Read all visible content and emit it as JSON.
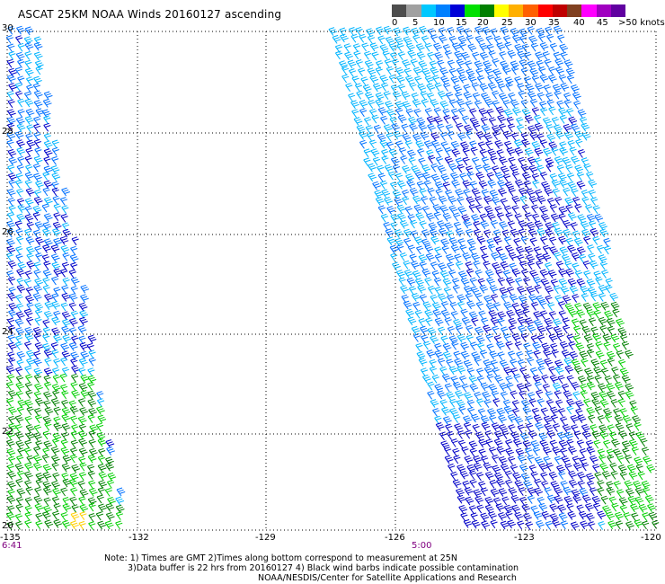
{
  "title": "ASCAT 25KM NOAA Winds 20160127 ascending",
  "legend": {
    "labels": [
      "0",
      "5",
      "10",
      "15",
      "20",
      "25",
      "30",
      "35",
      "40",
      "45",
      ">50 knots"
    ],
    "colors": [
      "#4d4d4d",
      "#a0a0a0",
      "#00c8ff",
      "#0080ff",
      "#0000d8",
      "#00e000",
      "#008000",
      "#ffff00",
      "#ffb000",
      "#ff6000",
      "#ff0000",
      "#c00000",
      "#804020",
      "#ff00ff",
      "#a000c0",
      "#6000a0"
    ]
  },
  "lat_labels": [
    "30",
    "28",
    "26",
    "24",
    "22",
    "20"
  ],
  "lon_labels": [
    "-135",
    "-132",
    "-129",
    "-126",
    "-123",
    "-120"
  ],
  "time_labels": [
    "6:41",
    "5:00"
  ],
  "notes": [
    "Note: 1) Times are GMT 2)Times along bottom correspond to measurement at 25N",
    "3)Data buffer is 22 hrs from 20160127 4) Black wind barbs indicate possible contamination",
    "NOAA/NESDIS/Center for Satellite Applications and Research"
  ]
}
